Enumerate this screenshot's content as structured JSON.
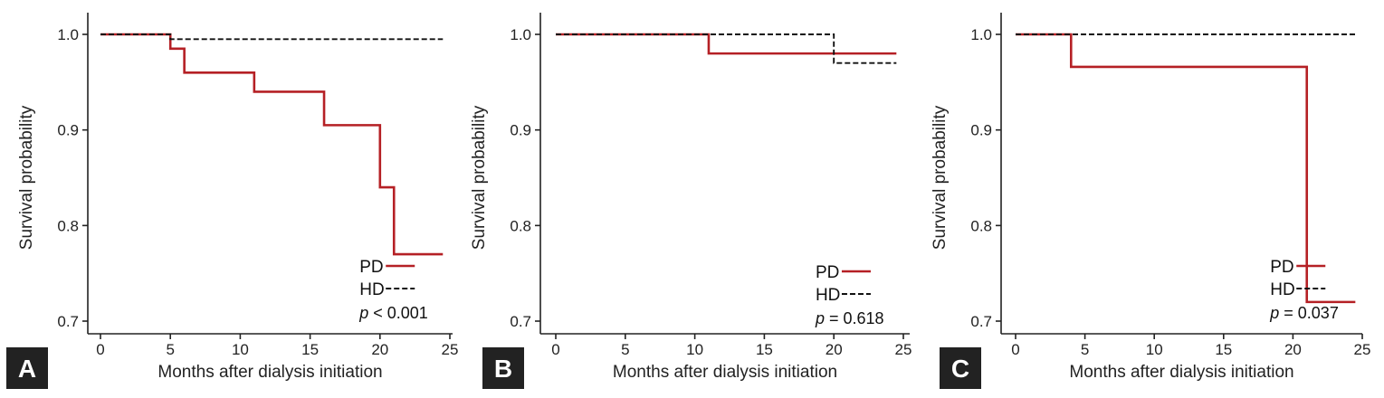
{
  "chart_data": [
    {
      "panel": "A",
      "type": "line",
      "step": true,
      "xlabel": "Months after dialysis initiation",
      "ylabel": "Survival probability",
      "xlim": [
        0,
        25
      ],
      "ylim": [
        0.7,
        1.0
      ],
      "xticks": [
        0,
        5,
        10,
        15,
        20,
        25
      ],
      "yticks": [
        0.7,
        0.8,
        0.9,
        1.0
      ],
      "ytick_labels": [
        "0.7",
        "0.8",
        "0.9",
        "1.0"
      ],
      "legend_position": "bottom-right",
      "series": [
        {
          "name": "PD",
          "style": "solid",
          "color": "#b52025",
          "x": [
            0,
            5,
            6,
            11,
            16,
            20,
            21,
            24.5
          ],
          "y": [
            1.0,
            0.985,
            0.96,
            0.94,
            0.905,
            0.84,
            0.77,
            0.77
          ]
        },
        {
          "name": "HD",
          "style": "dashed",
          "color": "#111111",
          "x": [
            0,
            5,
            24.5
          ],
          "y": [
            1.0,
            0.995,
            0.995
          ]
        }
      ],
      "p_label": "p",
      "p_value": "< 0.001"
    },
    {
      "panel": "B",
      "type": "line",
      "step": true,
      "xlabel": "Months after dialysis initiation",
      "ylabel": "Survival probability",
      "xlim": [
        0,
        25
      ],
      "ylim": [
        0.7,
        1.0
      ],
      "xticks": [
        0,
        5,
        10,
        15,
        20,
        25
      ],
      "yticks": [
        0.7,
        0.8,
        0.9,
        1.0
      ],
      "ytick_labels": [
        "0.7",
        "0.8",
        "0.9",
        "1.0"
      ],
      "legend_position": "bottom-right",
      "series": [
        {
          "name": "PD",
          "style": "solid",
          "color": "#b52025",
          "x": [
            0,
            11,
            24.5
          ],
          "y": [
            1.0,
            0.98,
            0.98
          ]
        },
        {
          "name": "HD",
          "style": "dashed",
          "color": "#111111",
          "x": [
            0,
            20,
            24.5
          ],
          "y": [
            1.0,
            0.97,
            0.97
          ]
        }
      ],
      "p_label": "p",
      "p_value": "= 0.618"
    },
    {
      "panel": "C",
      "type": "line",
      "step": true,
      "xlabel": "Months after dialysis initiation",
      "ylabel": "Survival probability",
      "xlim": [
        0,
        25
      ],
      "ylim": [
        0.7,
        1.0
      ],
      "xticks": [
        0,
        5,
        10,
        15,
        20,
        25
      ],
      "yticks": [
        0.7,
        0.8,
        0.9,
        1.0
      ],
      "ytick_labels": [
        "0.7",
        "0.8",
        "0.9",
        "1.0"
      ],
      "legend_position": "bottom-right",
      "series": [
        {
          "name": "PD",
          "style": "solid",
          "color": "#b52025",
          "x": [
            0,
            4,
            21,
            24.5
          ],
          "y": [
            1.0,
            0.966,
            0.72,
            0.72
          ]
        },
        {
          "name": "HD",
          "style": "dashed",
          "color": "#111111",
          "x": [
            0,
            24.5
          ],
          "y": [
            1.0,
            1.0
          ]
        }
      ],
      "p_label": "p",
      "p_value": "= 0.037"
    }
  ]
}
